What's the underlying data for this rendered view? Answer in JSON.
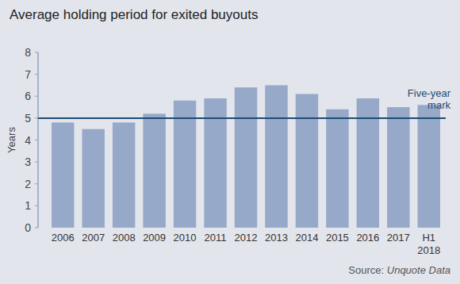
{
  "chart_data": {
    "type": "bar",
    "title": "Average holding period for exited buyouts",
    "y_label": "Years",
    "categories": [
      "2006",
      "2007",
      "2008",
      "2009",
      "2010",
      "2011",
      "2012",
      "2013",
      "2014",
      "2015",
      "2016",
      "2017",
      "H1 2018"
    ],
    "values": [
      4.8,
      4.5,
      4.8,
      5.2,
      5.8,
      5.9,
      6.4,
      6.5,
      6.1,
      5.4,
      5.9,
      5.5,
      5.6
    ],
    "color": "#97a9c8",
    "ylim": [
      0,
      8
    ],
    "yticks": [
      0,
      1,
      2,
      3,
      4,
      5,
      6,
      7,
      8
    ],
    "grid": false,
    "reference_line": {
      "value": 5,
      "label": "Five-year mark",
      "color": "#1d4b78"
    },
    "source": {
      "label": "Source:",
      "name": "Unquote Data"
    }
  }
}
